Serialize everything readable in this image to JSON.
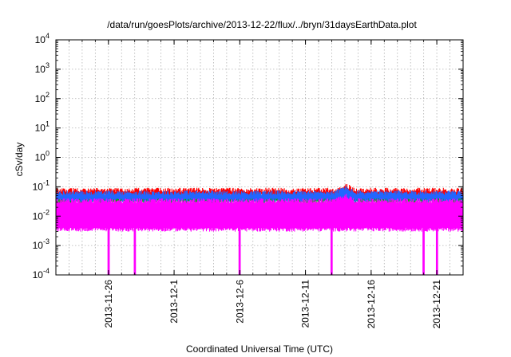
{
  "chart_data": {
    "type": "line",
    "title": "/data/run/goesPlots/archive/2013-12-22/flux/../bryn/31daysEarthData.plot",
    "xlabel": "Coordinated Universal Time (UTC)",
    "ylabel": "cSv/day",
    "y_scale": "log",
    "ylim": [
      0.0001,
      10000
    ],
    "y_ticks": [
      {
        "value": 0.0001,
        "base": "10",
        "exp": "-4"
      },
      {
        "value": 0.001,
        "base": "10",
        "exp": "-3"
      },
      {
        "value": 0.01,
        "base": "10",
        "exp": "-2"
      },
      {
        "value": 0.1,
        "base": "10",
        "exp": "-1"
      },
      {
        "value": 1,
        "base": "10",
        "exp": "0"
      },
      {
        "value": 10,
        "base": "10",
        "exp": "1"
      },
      {
        "value": 100,
        "base": "10",
        "exp": "2"
      },
      {
        "value": 1000,
        "base": "10",
        "exp": "3"
      },
      {
        "value": 10000,
        "base": "10",
        "exp": "4"
      }
    ],
    "xlim": [
      "2013-11-22",
      "2013-12-23"
    ],
    "x_ticks": [
      "2013-11-26",
      "2013-12-1",
      "2013-12-6",
      "2013-12-11",
      "2013-12-16",
      "2013-12-21"
    ],
    "x_tick_dates": [
      "2013-11-26",
      "2013-12-01",
      "2013-12-06",
      "2013-12-11",
      "2013-12-16",
      "2013-12-21"
    ],
    "grid": true,
    "legend": "none",
    "series": [
      {
        "color": "#ff0000",
        "typical": 0.065,
        "low": 0.05,
        "high": 0.08
      },
      {
        "color": "#00aa00",
        "typical": 0.04,
        "low": 0.03,
        "high": 0.05
      },
      {
        "color": "#2266ff",
        "typical": 0.05,
        "low": 0.035,
        "high": 0.065
      },
      {
        "color": "#ff00ff",
        "typical": 0.02,
        "low": 0.0035,
        "high": 0.035
      }
    ],
    "peak": {
      "date": "2013-12-14",
      "value": 0.1
    },
    "dropouts": [
      "2013-11-26",
      "2013-11-28",
      "2013-12-06",
      "2013-12-13",
      "2013-12-20",
      "2013-12-21"
    ]
  }
}
